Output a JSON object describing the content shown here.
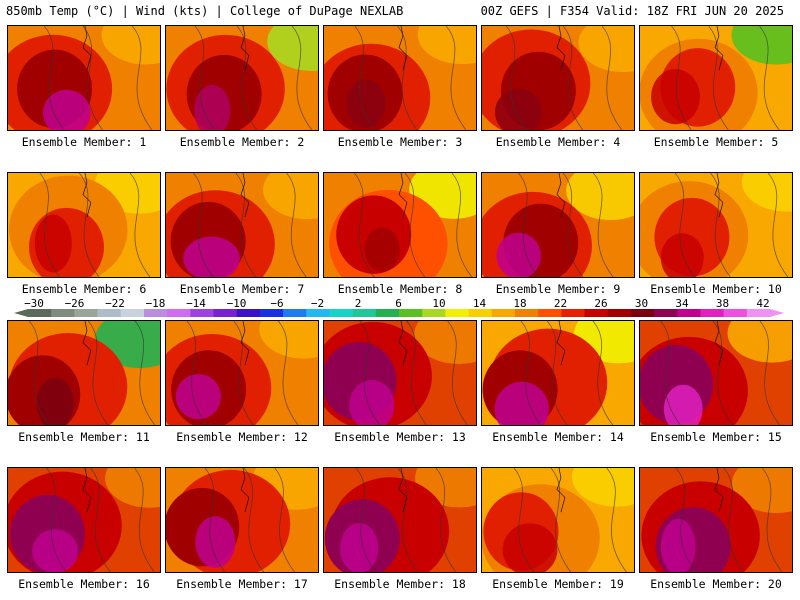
{
  "header": {
    "left": "850mb Temp (°C) | Wind (kts) | College of DuPage NEXLAB",
    "right": "00Z GEFS | F354 Valid: 18Z FRI JUN 20 2025"
  },
  "members": [
    {
      "label": "Ensemble Member: 1",
      "style": "hot-west"
    },
    {
      "label": "Ensemble Member: 2",
      "style": "hot-west-green-ne"
    },
    {
      "label": "Ensemble Member: 3",
      "style": "hot-center"
    },
    {
      "label": "Ensemble Member: 4",
      "style": "hot-center"
    },
    {
      "label": "Ensemble Member: 5",
      "style": "warm-green-ne"
    },
    {
      "label": "Ensemble Member: 6",
      "style": "warm"
    },
    {
      "label": "Ensemble Member: 7",
      "style": "hot-west"
    },
    {
      "label": "Ensemble Member: 8",
      "style": "cool-north"
    },
    {
      "label": "Ensemble Member: 9",
      "style": "hot-sw"
    },
    {
      "label": "Ensemble Member: 10",
      "style": "warm"
    },
    {
      "label": "Ensemble Member: 11",
      "style": "green-ne"
    },
    {
      "label": "Ensemble Member: 12",
      "style": "hot-west"
    },
    {
      "label": "Ensemble Member: 13",
      "style": "very-hot-west"
    },
    {
      "label": "Ensemble Member: 14",
      "style": "hot-sw-yellow-east"
    },
    {
      "label": "Ensemble Member: 15",
      "style": "very-hot-center"
    },
    {
      "label": "Ensemble Member: 16",
      "style": "very-hot-west"
    },
    {
      "label": "Ensemble Member: 17",
      "style": "hot-west"
    },
    {
      "label": "Ensemble Member: 18",
      "style": "very-hot-west"
    },
    {
      "label": "Ensemble Member: 19",
      "style": "warm"
    },
    {
      "label": "Ensemble Member: 20",
      "style": "very-hot-west"
    }
  ],
  "colorbar": {
    "ticks": [
      "−30",
      "−26",
      "−22",
      "−18",
      "−14",
      "−10",
      "−6",
      "−2",
      "2",
      "6",
      "10",
      "14",
      "18",
      "22",
      "26",
      "30",
      "34",
      "38",
      "42"
    ],
    "colors": [
      "#5c6a5c",
      "#7e8c7e",
      "#9aa69a",
      "#adbcc8",
      "#c8d2de",
      "#b98ee0",
      "#d06cf0",
      "#a040e0",
      "#7a22d0",
      "#3e10c8",
      "#1830e0",
      "#1e7cf0",
      "#23b8f0",
      "#16d4c8",
      "#20c898",
      "#22b050",
      "#58c020",
      "#a8d820",
      "#f0f000",
      "#f8d000",
      "#f8a800",
      "#f08000",
      "#ff5000",
      "#e82000",
      "#c80000",
      "#a00000",
      "#7a0010",
      "#900050",
      "#c00090",
      "#e020c0",
      "#f050e0",
      "#f090f0"
    ]
  }
}
